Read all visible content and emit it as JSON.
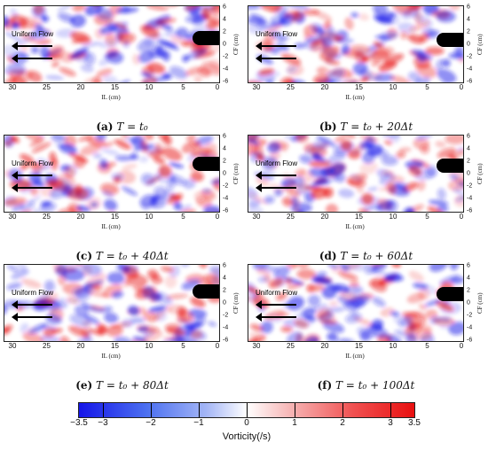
{
  "figure": {
    "flow_label": "Uniform Flow",
    "x_axis_label": "IL (cm)",
    "y_axis_label": "CF (cm)",
    "x_ticks": [
      "30",
      "25",
      "20",
      "15",
      "10",
      "5",
      "0"
    ],
    "y_ticks": [
      "6",
      "4",
      "2",
      "0",
      "-2",
      "-4",
      "-6"
    ],
    "colors": {
      "negative": "#1515e8",
      "positive": "#e81010",
      "neutral": "#ffffff",
      "body": "#000000"
    },
    "panels": [
      {
        "letter": "(a)",
        "eq": "T = t₀"
      },
      {
        "letter": "(b)",
        "eq": "T = t₀ + 20Δt"
      },
      {
        "letter": "(c)",
        "eq": "T = t₀ + 40Δt"
      },
      {
        "letter": "(d)",
        "eq": "T = t₀ + 60Δt"
      },
      {
        "letter": "(e)",
        "eq": "T = t₀ + 80Δt"
      },
      {
        "letter": "(f)",
        "eq": "T = t₀ + 100Δt"
      }
    ],
    "colorbar": {
      "title": "Vorticity(/s)",
      "range": [
        -3.5,
        3.5
      ],
      "ticks": [
        {
          "value": -3.5,
          "label": "−3.5"
        },
        {
          "value": -3,
          "label": "−3"
        },
        {
          "value": -2,
          "label": "−2"
        },
        {
          "value": -1,
          "label": "−1"
        },
        {
          "value": 0,
          "label": "0"
        },
        {
          "value": 1,
          "label": "1"
        },
        {
          "value": 2,
          "label": "2"
        },
        {
          "value": 3,
          "label": "3"
        },
        {
          "value": 3.5,
          "label": "3.5"
        }
      ]
    }
  }
}
